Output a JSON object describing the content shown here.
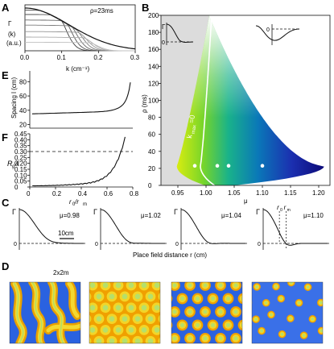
{
  "panels": {
    "A": "A",
    "B": "B",
    "C": "C",
    "D": "D",
    "E": "E",
    "F": "F"
  },
  "chart_data": [
    {
      "id": "A",
      "type": "line",
      "ylabel_main": "Γ",
      "ylabel_sub": "(k)",
      "ylabel_unit": "(a.u.)",
      "xlabel": "k (cm⁻¹)",
      "annotation": "ρ=23ms",
      "xlim": [
        0,
        0.3
      ],
      "xticks": [
        "0.0",
        "0.1",
        "0.2",
        "0.3"
      ],
      "series_cutoffs": [
        0.08,
        0.095,
        0.11,
        0.125,
        0.14,
        0.155,
        0.17
      ],
      "series_heights": [
        0.95,
        0.85,
        0.72,
        0.6,
        0.45,
        0.32,
        0.2
      ]
    },
    {
      "id": "B",
      "type": "heatmap",
      "xlabel": "μ",
      "ylabel": "ρ (ms)",
      "xlim": [
        0.92,
        1.22
      ],
      "ylim": [
        0,
        200
      ],
      "xticks": [
        "0.95",
        "1.00",
        "1.05",
        "1.10",
        "1.15",
        "1.20"
      ],
      "yticks": [
        "0",
        "20",
        "40",
        "60",
        "80",
        "100",
        "120",
        "140",
        "160",
        "180",
        "200"
      ],
      "boundary_label": "k",
      "boundary_label_sub": "max",
      "boundary_label_eq": "=0",
      "inset_left_label": "Γ",
      "inset_left_zero": "0",
      "inset_right_zero": "0",
      "points": [
        {
          "mu": 0.98,
          "rho": 23
        },
        {
          "mu": 1.02,
          "rho": 23
        },
        {
          "mu": 1.04,
          "rho": 23
        },
        {
          "mu": 1.1,
          "rho": 23
        }
      ]
    },
    {
      "id": "E",
      "type": "line",
      "ylabel": "Spacing l (cm)",
      "yticks": [
        "20",
        "40",
        "60",
        "80"
      ],
      "ylim": [
        15,
        95
      ]
    },
    {
      "id": "F",
      "type": "line",
      "ylabel_top": "R",
      "ylabel_sub": "g",
      "ylabel_bottom": "/l",
      "xlabel_main": "r",
      "xlabel_sub0": "0",
      "xlabel_sep": "/r",
      "xlabel_sub1": "m",
      "xlim": [
        0,
        0.8
      ],
      "ylim": [
        0,
        0.45
      ],
      "xticks": [
        "0",
        "0.2",
        "0.4",
        "0.6",
        "0.8"
      ],
      "yticks": [
        "0",
        "0.05",
        "0.10",
        "0.15",
        "0.20",
        "0.25",
        "0.30",
        "0.35",
        "0.40",
        "0.45"
      ],
      "threshold": 0.3
    },
    {
      "id": "C",
      "type": "line",
      "xlabel": "Place field distance r (cm)",
      "scalebar": "10cm",
      "ylabel": "Γ",
      "zero": "0",
      "panels": [
        {
          "mu_label": "μ=0.98",
          "mu": 0.98
        },
        {
          "mu_label": "μ=1.02",
          "mu": 1.02
        },
        {
          "mu_label": "μ=1.04",
          "mu": 1.04
        },
        {
          "mu_label": "μ=1.10",
          "mu": 1.1
        }
      ],
      "r0_label": "r",
      "r0_sub": "0",
      "rm_label": "r",
      "rm_sub": "m"
    },
    {
      "id": "D",
      "type": "heatmap",
      "size_label": "2x2m",
      "tiles": [
        {
          "mu": 0.98,
          "pattern": "stripes"
        },
        {
          "mu": 1.02,
          "pattern": "dense-spots"
        },
        {
          "mu": 1.04,
          "pattern": "spots"
        },
        {
          "mu": 1.1,
          "pattern": "sparse-spots"
        }
      ]
    }
  ]
}
